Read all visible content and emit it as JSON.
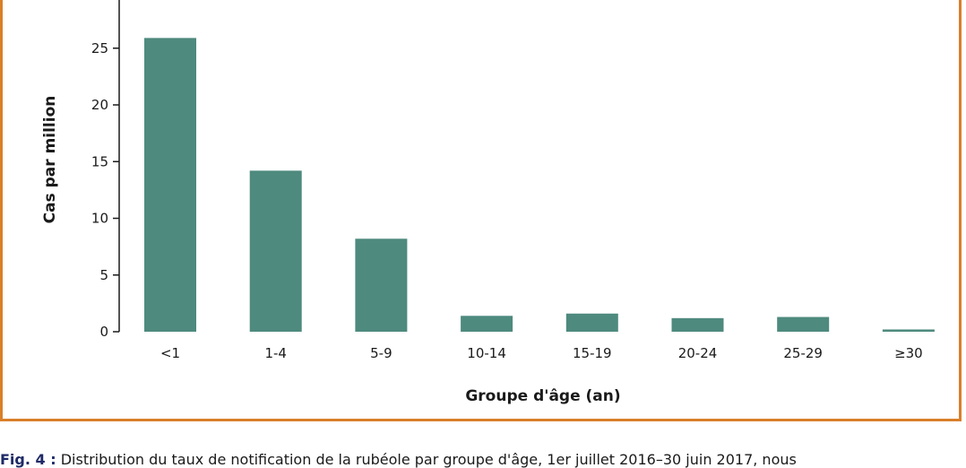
{
  "chart_data": {
    "type": "bar",
    "title": "",
    "xlabel": "Groupe d'âge (an)",
    "ylabel": "Cas par million",
    "categories": [
      "<1",
      "1-4",
      "5-9",
      "10-14",
      "15-19",
      "20-24",
      "25-29",
      "≥30"
    ],
    "values": [
      25.9,
      14.2,
      8.2,
      1.4,
      1.6,
      1.2,
      1.3,
      0.2
    ],
    "yticks": [
      "0",
      "5",
      "10",
      "15",
      "20",
      "25"
    ],
    "ylim": [
      0,
      29
    ],
    "bar_color": "#4e8a7e",
    "grid": false,
    "legend": "none"
  },
  "caption": {
    "lead": "Fig. 4 :",
    "text": " Distribution du taux de notification de la rubéole par groupe d'âge, 1er juillet 2016–30 juin 2017, nous"
  },
  "colors": {
    "frame": "#d97f2a",
    "axis": "#1a1a1a"
  }
}
